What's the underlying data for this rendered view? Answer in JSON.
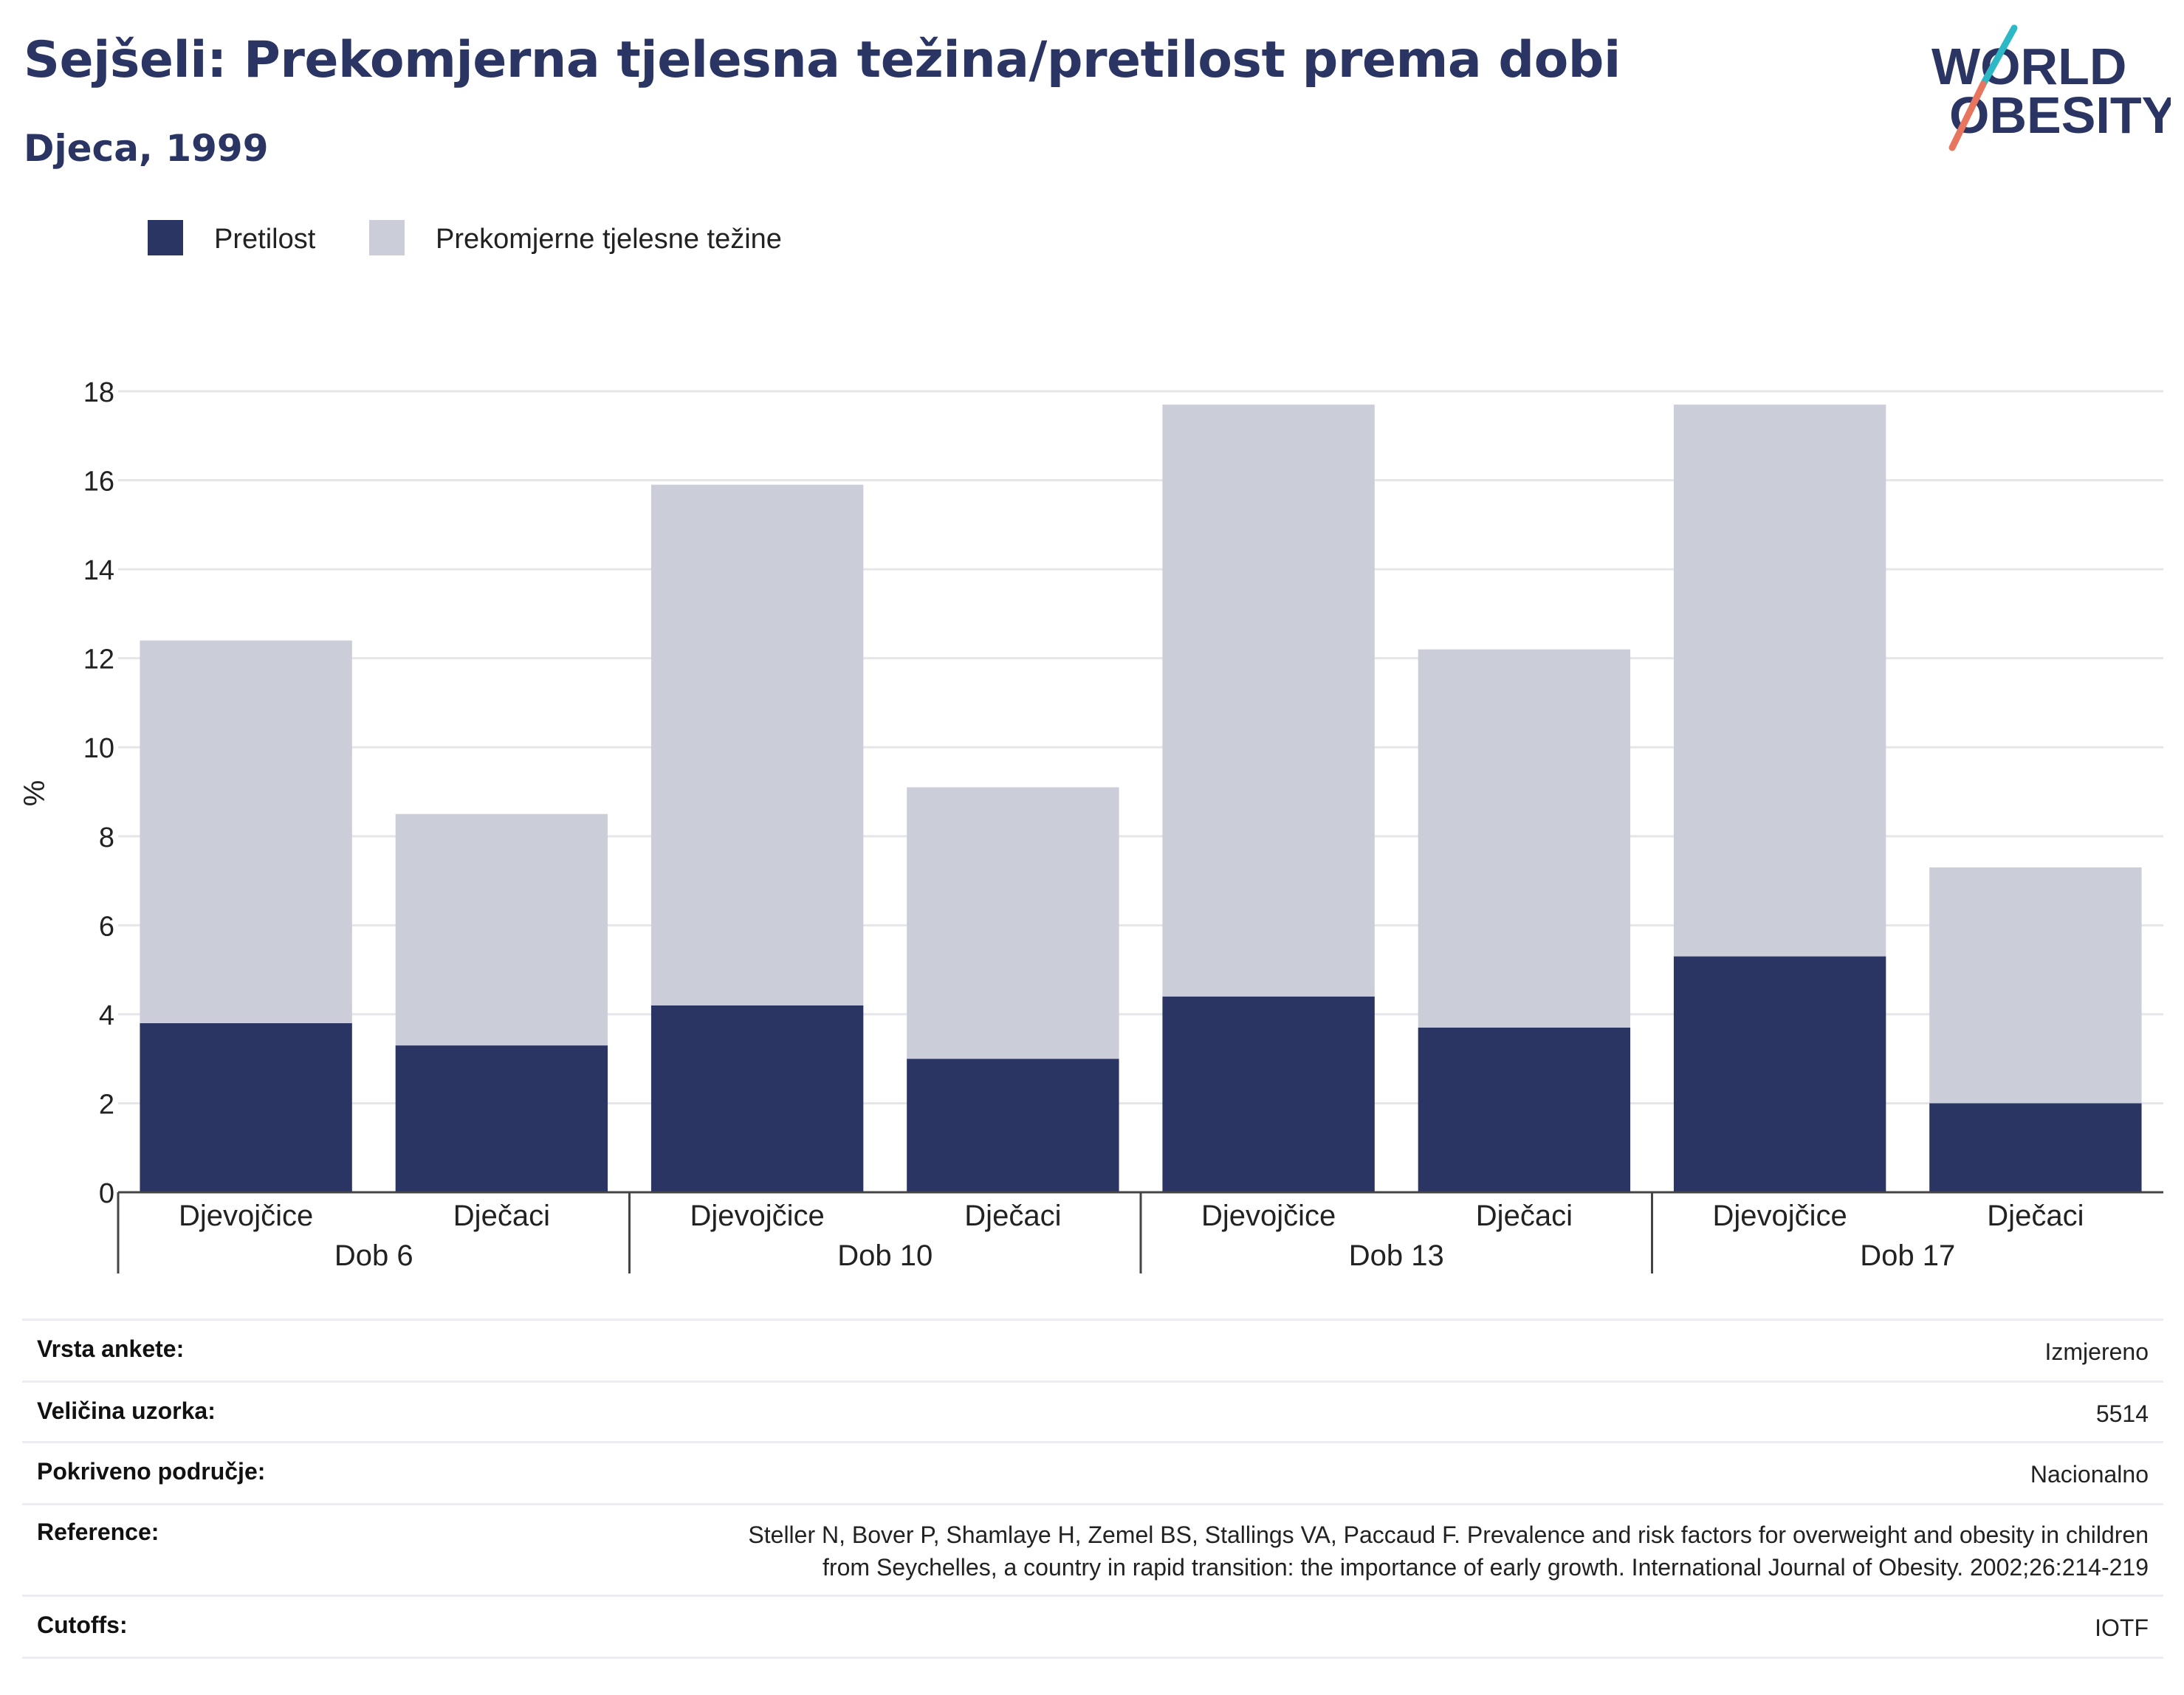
{
  "title": "Sejšeli: Prekomjerna tjelesna težina/pretilost prema dobi",
  "subtitle": "Djeca, 1999",
  "logo": {
    "line1": "WORLD",
    "line2": "OBESITY"
  },
  "colors": {
    "obesity": "#2a3563",
    "overweight": "#cbcdd9",
    "title": "#2a3563",
    "logo_teal": "#2cb8c4",
    "logo_coral": "#e8765f"
  },
  "chart_data": {
    "type": "bar",
    "stacked": true,
    "ylabel": "%",
    "ylim": [
      0,
      18
    ],
    "yticks": [
      0,
      2,
      4,
      6,
      8,
      10,
      12,
      14,
      16,
      18
    ],
    "grid": true,
    "legend_position": "top-left",
    "groups": [
      "Dob 6",
      "Dob 10",
      "Dob 13",
      "Dob 17"
    ],
    "categories": [
      "Djevojčice",
      "Dječaci",
      "Djevojčice",
      "Dječaci",
      "Djevojčice",
      "Dječaci",
      "Djevojčice",
      "Dječaci"
    ],
    "series": [
      {
        "name": "Pretilost",
        "values": [
          3.8,
          3.3,
          4.2,
          3.0,
          4.4,
          3.7,
          5.3,
          2.0
        ]
      },
      {
        "name": "Prekomjerne tjelesne težine",
        "values": [
          8.6,
          5.2,
          11.7,
          6.1,
          13.3,
          8.5,
          12.4,
          5.3
        ]
      }
    ]
  },
  "info": [
    {
      "label": "Vrsta ankete:",
      "value": [
        "Izmjereno"
      ]
    },
    {
      "label": "Veličina uzorka:",
      "value": [
        "5514"
      ]
    },
    {
      "label": "Pokriveno područje:",
      "value": [
        "Nacionalno"
      ]
    },
    {
      "label": "Reference:",
      "value": [
        "Steller N, Bover P, Shamlaye H, Zemel BS, Stallings VA, Paccaud F. Prevalence and risk factors for overweight and obesity in children",
        "from Seychelles, a country in rapid transition: the importance of early growth. International Journal of Obesity. 2002;26:214-219"
      ]
    },
    {
      "label": "Cutoffs:",
      "value": [
        "IOTF"
      ]
    }
  ]
}
